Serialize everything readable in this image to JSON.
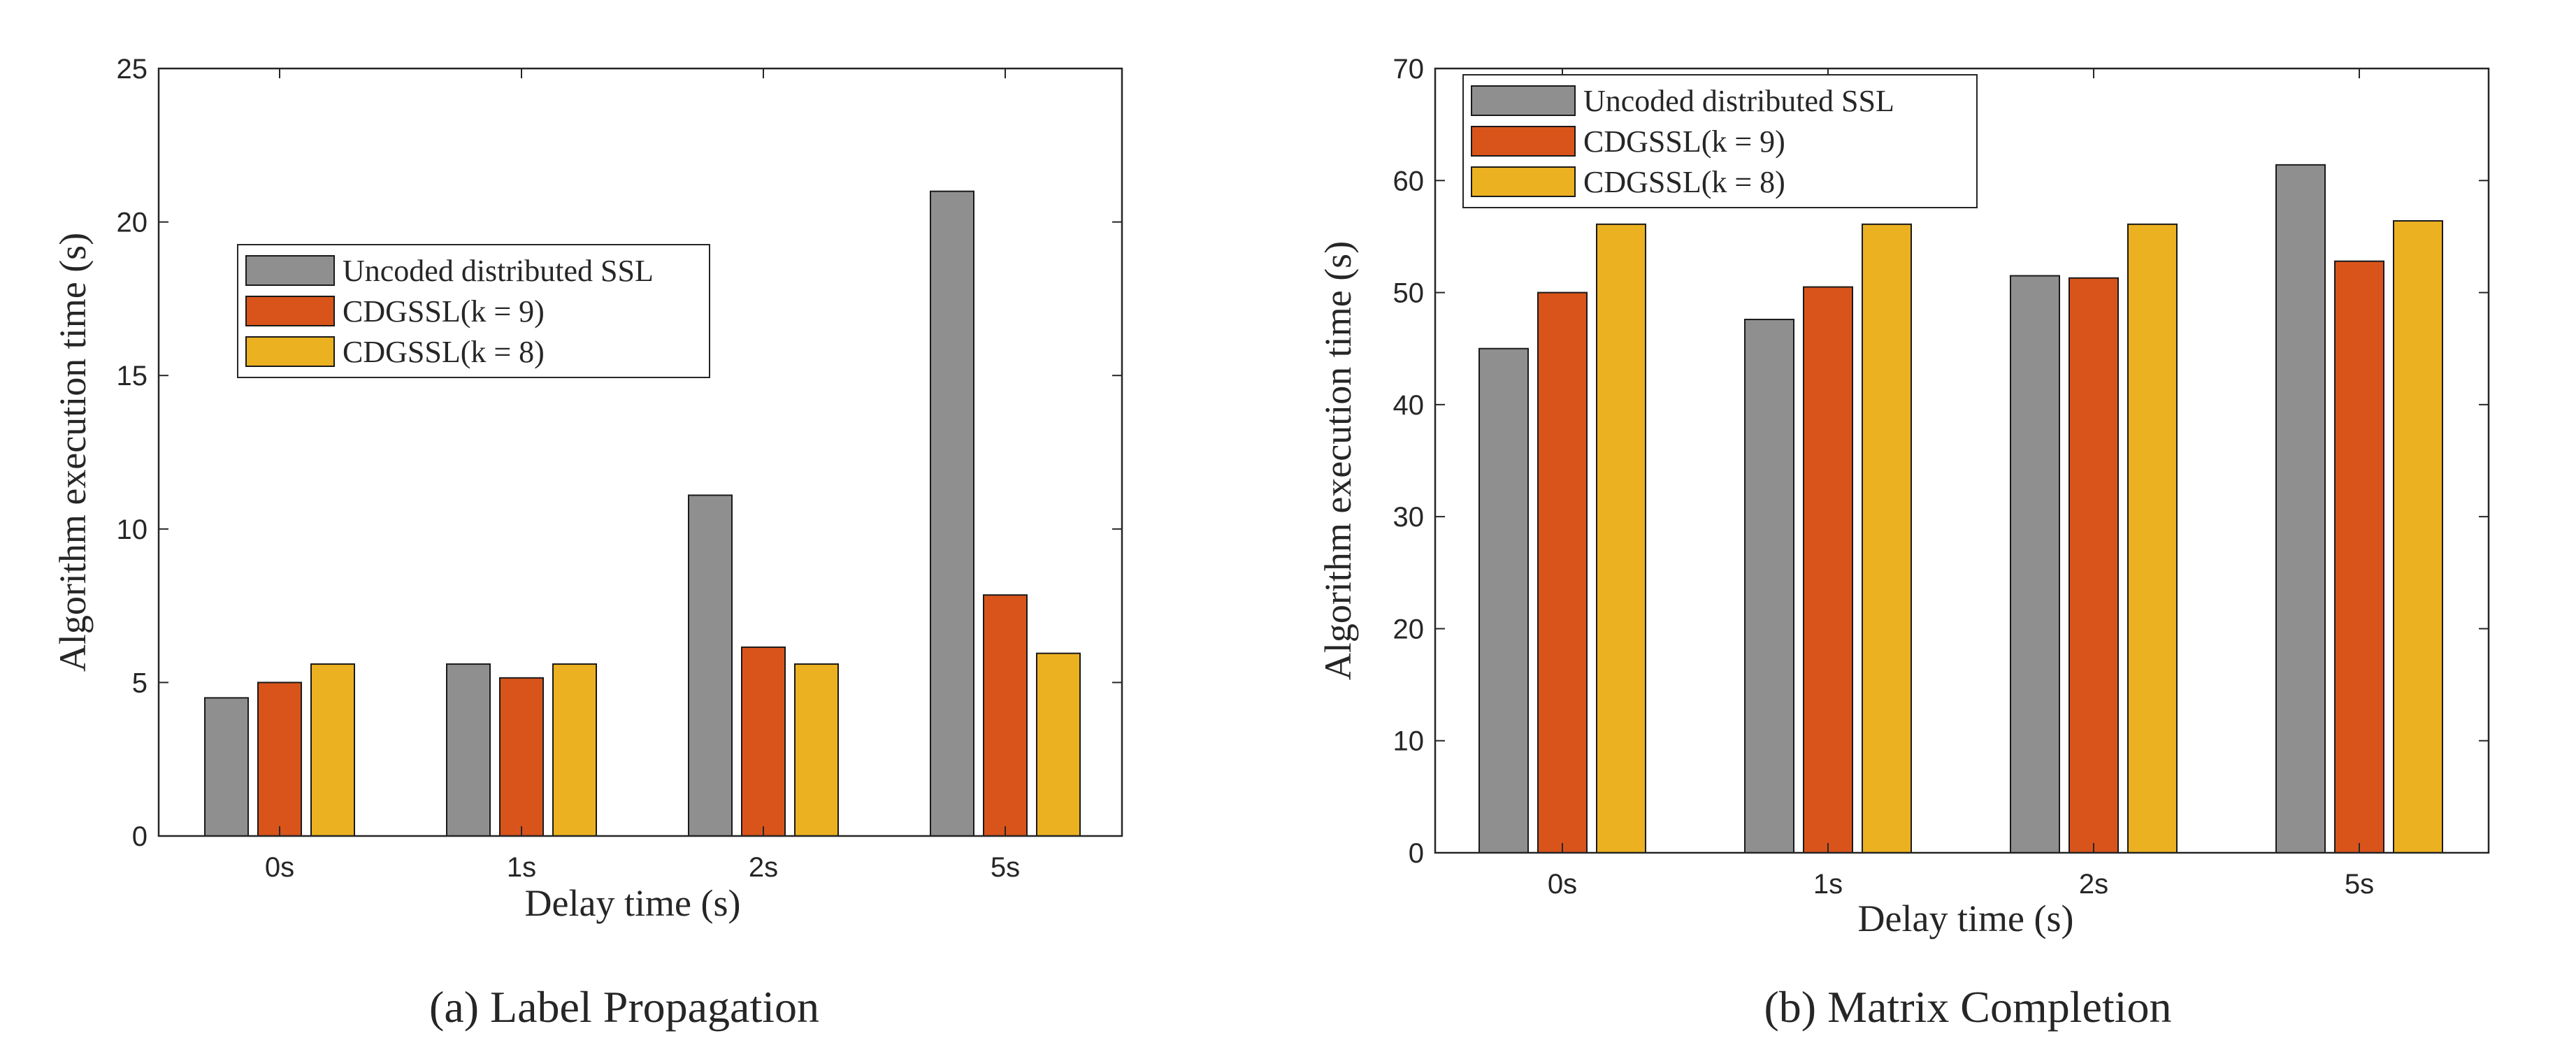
{
  "colors": {
    "uncoded": "#8f8f8f",
    "cdgssl_k9": "#d9541b",
    "cdgssl_k8": "#ecb121",
    "axis": "#262626",
    "background": "#ffffff"
  },
  "chart_data": [
    {
      "type": "bar",
      "caption": "(a) Label Propagation",
      "title": "",
      "xlabel": "Delay time (s)",
      "ylabel": "Algorithm execution time (s)",
      "ylim": [
        0,
        25
      ],
      "yticks": [
        "0",
        "5",
        "10",
        "15",
        "20",
        "25"
      ],
      "categories": [
        "0s",
        "1s",
        "2s",
        "5s"
      ],
      "grid": false,
      "legend_position": "upper-left-inside",
      "series": [
        {
          "name": "Uncoded distributed SSL",
          "values": [
            4.5,
            5.6,
            11.1,
            21.0
          ]
        },
        {
          "name": "CDGSSL(k = 9)",
          "values": [
            5.0,
            5.15,
            6.15,
            7.85
          ]
        },
        {
          "name": "CDGSSL(k = 8)",
          "values": [
            5.6,
            5.6,
            5.6,
            5.95
          ]
        }
      ]
    },
    {
      "type": "bar",
      "caption": "(b) Matrix Completion",
      "title": "",
      "xlabel": "Delay time (s)",
      "ylabel": "Algorithm execution time (s)",
      "ylim": [
        0,
        70
      ],
      "yticks": [
        "0",
        "10",
        "20",
        "30",
        "40",
        "50",
        "60",
        "70"
      ],
      "categories": [
        "0s",
        "1s",
        "2s",
        "5s"
      ],
      "grid": false,
      "legend_position": "top-left",
      "series": [
        {
          "name": "Uncoded distributed SSL",
          "values": [
            45.0,
            47.6,
            51.5,
            61.4
          ]
        },
        {
          "name": "CDGSSL(k = 9)",
          "values": [
            50.0,
            50.5,
            51.3,
            52.8
          ]
        },
        {
          "name": "CDGSSL(k = 8)",
          "values": [
            56.1,
            56.1,
            56.1,
            56.4
          ]
        }
      ]
    }
  ]
}
